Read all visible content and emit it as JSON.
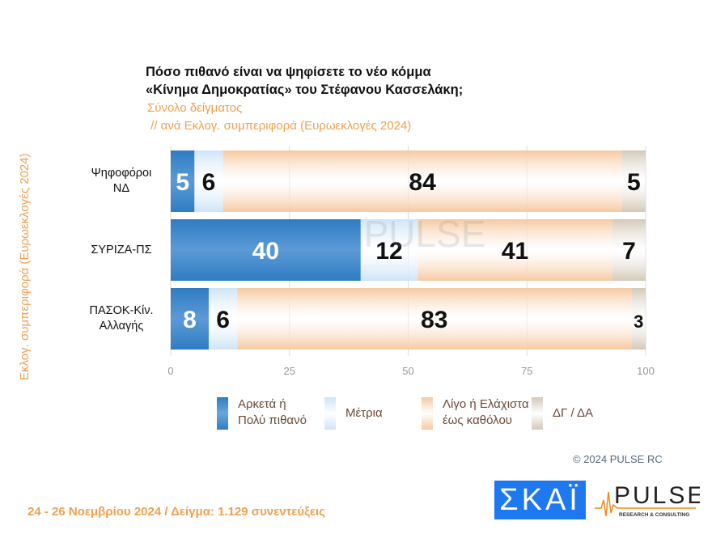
{
  "title_lines": [
    "Πόσο πιθανό είναι να ψηφίσετε το νέο κόμμα",
    "«Κίνημα Δημοκρατίας» του Στέφανου Κασσελάκη;"
  ],
  "subtitle_lines": [
    "Σύνολο δείγματος",
    " // ανά Εκλογ. συμπεριφορά (Ευρωεκλογές 2024)"
  ],
  "watermark": "PULSE RESEARCH & CONSULTING",
  "chart_data": {
    "type": "bar",
    "orientation": "horizontal",
    "stacked": true,
    "ylabel": "Εκλογ. συμπεριφορά (Ευρωεκλογές 2024)",
    "categories": [
      [
        "Ψηφοφόροι",
        "ΝΔ"
      ],
      [
        "ΣΥΡΙΖΑ-ΠΣ"
      ],
      [
        "ΠΑΣΟΚ-Κίν.",
        "Αλλαγής"
      ]
    ],
    "xlim": [
      0,
      100
    ],
    "xticks": [
      "0",
      "25",
      "50",
      "75",
      "100"
    ],
    "grid": true,
    "legend": "bottom",
    "series": [
      {
        "name": "Αρκετά ή Πολύ πιθανό",
        "legend_lines": [
          "Αρκετά ή",
          "Πολύ πιθανό"
        ],
        "color": "#2f7cc3",
        "label_color": "#ffffff",
        "values": [
          5,
          40,
          8
        ]
      },
      {
        "name": "Μέτρια",
        "legend_lines": [
          "Μέτρια"
        ],
        "color": "#cde4f8",
        "label_color": "#111111",
        "values": [
          6,
          12,
          6
        ]
      },
      {
        "name": "Λίγο ή Ελάχιστα έως καθόλου",
        "legend_lines": [
          "Λίγο ή Ελάχιστα",
          "έως καθόλου"
        ],
        "color": "#f6c9a0",
        "label_color": "#111111",
        "values": [
          84,
          41,
          83
        ]
      },
      {
        "name": "ΔΓ / ΔΑ",
        "legend_lines": [
          "ΔΓ / ΔΑ"
        ],
        "color": "#d4c8b8",
        "label_color": "#111111",
        "values": [
          5,
          7,
          3
        ]
      }
    ]
  },
  "copyright": "©  2024  PULSE RC",
  "footer": "24 - 26 Νοεμβρίου 2024  /  Δείγμα:  1.129 συνεντεύξεις",
  "logos": {
    "skai": "ΣΚΑΪ",
    "pulse": "PULSE",
    "pulse_sub": "RESEARCH & CONSULTING"
  }
}
